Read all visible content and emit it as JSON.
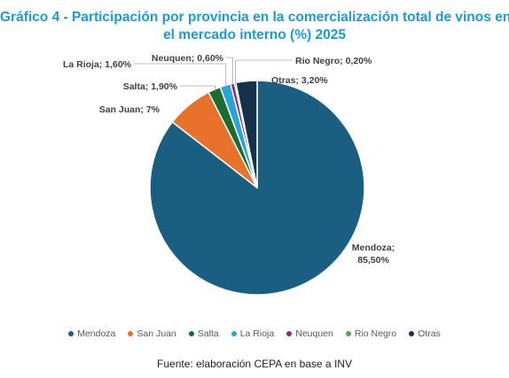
{
  "chart_data": {
    "type": "pie",
    "title_line1": "Gráfico 4 - Participación por provincia en la comercialización total de vinos en",
    "title_line2": "el mercado interno (%) 2025",
    "slices": [
      {
        "name": "Mendoza",
        "value": 85.5,
        "label_line1": "Mendoza;",
        "label_line2": "85,50%",
        "color": "#1a5e82"
      },
      {
        "name": "San Juan",
        "value": 7.0,
        "label_line1": "San Juan; 7%",
        "color": "#e8712c"
      },
      {
        "name": "Salta",
        "value": 1.9,
        "label_line1": "Salta; 1,90%",
        "color": "#1d6b2f"
      },
      {
        "name": "La Rioja",
        "value": 1.6,
        "label_line1": "La Rioja; 1,60%",
        "color": "#2aa3d8"
      },
      {
        "name": "Neuquen",
        "value": 0.6,
        "label_line1": "Neuquen; 0,60%",
        "color": "#8e2a8c"
      },
      {
        "name": "Rio Negro",
        "value": 0.2,
        "label_line1": "Rio Negro; 0,20%",
        "color": "#4aa84a"
      },
      {
        "name": "Otras",
        "value": 3.2,
        "label_line1": "Otras; 3,20%",
        "color": "#15324a"
      }
    ],
    "legend_position": "bottom"
  },
  "source": "Fuente: elaboración CEPA en base a INV"
}
